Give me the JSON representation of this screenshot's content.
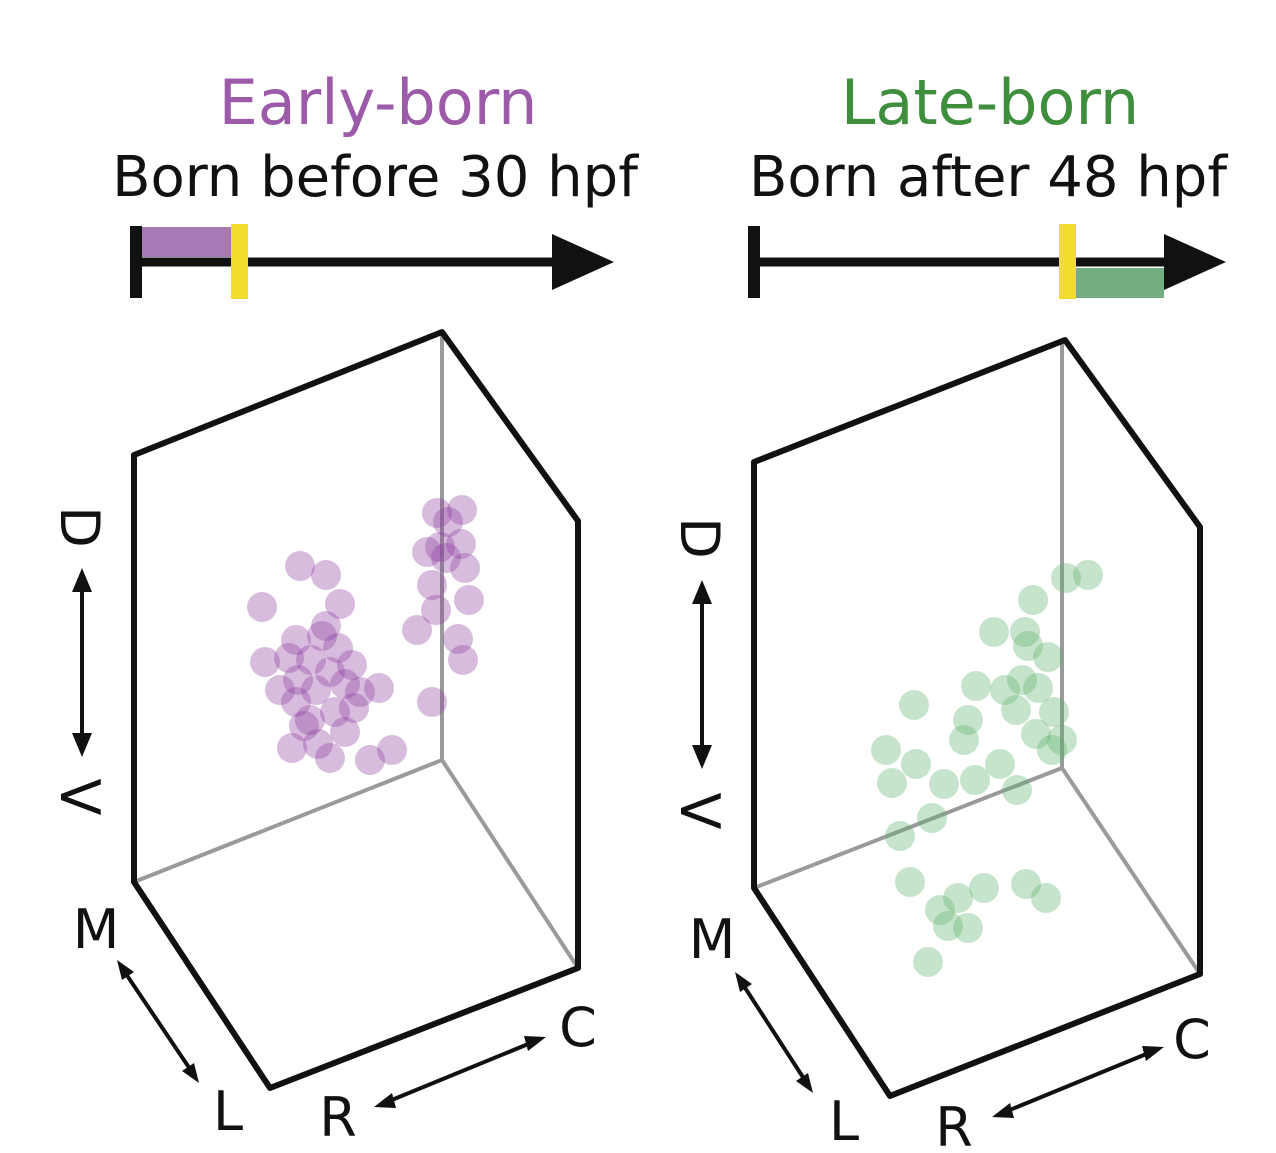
{
  "panels": [
    {
      "title": "Early-born",
      "subtitle": "Born before 30 hpf",
      "title_color": "#9b5ba8",
      "dot_color": "#8e3fa0",
      "window_color": "#a879b4",
      "marker_color": "#f2dc2e",
      "axes": {
        "dorsal": "D",
        "ventral": "V",
        "medial": "M",
        "lateral": "L",
        "rostral": "R",
        "caudal": "C"
      }
    },
    {
      "title": "Late-born",
      "subtitle": "Born after 48 hpf",
      "title_color": "#3e8e3e",
      "dot_color": "#5cb36a",
      "window_color": "#74ad7f",
      "marker_color": "#f2dc2e",
      "axes": {
        "dorsal": "D",
        "ventral": "V",
        "medial": "M",
        "lateral": "L",
        "rostral": "R",
        "caudal": "C"
      }
    }
  ]
}
